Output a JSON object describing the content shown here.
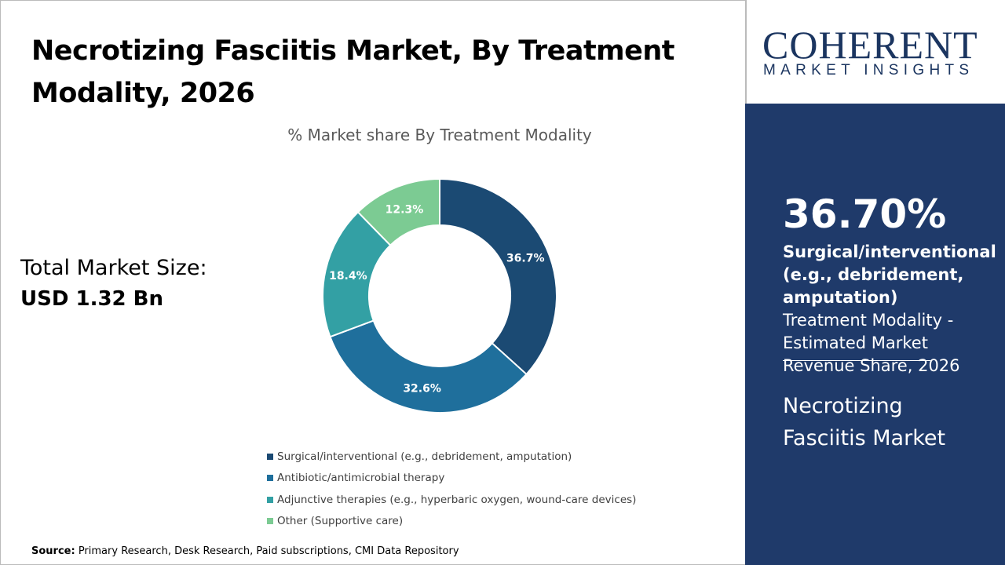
{
  "title": "Necrotizing Fasciitis Market, By Treatment Modality, 2026",
  "total_market": {
    "label": "Total Market Size:",
    "value": "USD 1.32 Bn"
  },
  "source": {
    "label": "Source:",
    "text": " Primary Research, Desk Research, Paid subscriptions, CMI Data Repository"
  },
  "logo": {
    "line1": "COHERENT",
    "line2": "MARKET INSIGHTS"
  },
  "highlight": {
    "value": "36.70%",
    "bold_text": "Surgical/interventional (e.g., debridement, amputation)",
    "text": " Treatment Modality - Estimated Market Revenue Share, 2026",
    "market": "Necrotizing Fasciitis Market"
  },
  "colors": {
    "panel": "#1f3a6a",
    "accent": "#1b3560"
  },
  "chart_data": {
    "type": "pie",
    "donut": true,
    "title": "% Market share By Treatment Modality",
    "legend_position": "bottom",
    "categories": [
      "Surgical/interventional (e.g., debridement, amputation)",
      "Antibiotic/antimicrobial therapy",
      "Adjunctive therapies (e.g., hyperbaric oxygen, wound-care devices)",
      "Other (Supportive care)"
    ],
    "values": [
      36.7,
      32.6,
      18.4,
      12.3
    ],
    "labels": [
      "36.7%",
      "32.6%",
      "18.4%",
      "12.3%"
    ],
    "colors": [
      "#1b4a73",
      "#1f6f9c",
      "#33a0a4",
      "#7ccb93"
    ]
  }
}
